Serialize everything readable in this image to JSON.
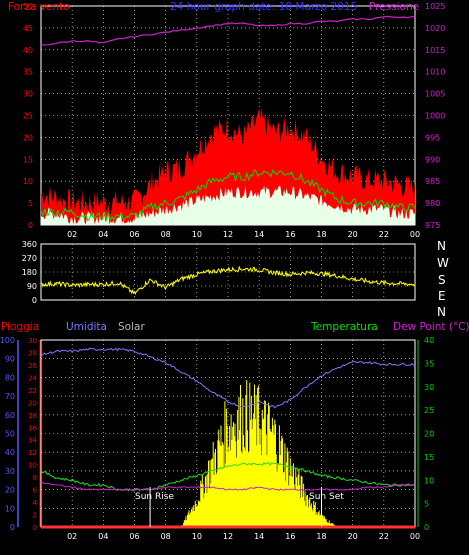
{
  "header": {
    "wind_label": "Forza vento",
    "title": "24 hour graph date: 10 Marzo 2015",
    "pressure_label": "Pressione"
  },
  "legend": {
    "rain": "Pioggia",
    "humidity": "Umidita",
    "solar": "Solar",
    "temperature": "Temperatura",
    "dewpoint": "Dew Point (°C)"
  },
  "compass": [
    "N",
    "W",
    "S",
    "E",
    "N"
  ],
  "colors": {
    "background": "#000000",
    "grid": "#ffffff",
    "wind_gust": "#ff0000",
    "wind_avg": "#00e000",
    "wind_speed": "#ffffff",
    "pressure": "#cc22cc",
    "direction": "#ffff00",
    "humidity": "#7b7bff",
    "temperature": "#22dd22",
    "dewpoint": "#cc22cc",
    "solar": "#ffff00",
    "rain": "#ff3333",
    "axis_red": "#ff0000",
    "axis_blue": "#5555ff",
    "axis_green": "#00cc00",
    "axis_magenta": "#cc22cc"
  },
  "chart_data": [
    {
      "type": "line",
      "name": "wind_and_pressure",
      "x_tick_labels": [
        "02",
        "04",
        "06",
        "08",
        "10",
        "12",
        "14",
        "16",
        "18",
        "20",
        "22",
        "00"
      ],
      "x": [
        0,
        1,
        2,
        3,
        4,
        5,
        6,
        7,
        8,
        9,
        10,
        11,
        12,
        13,
        14,
        15,
        16,
        17,
        18,
        19,
        20,
        21,
        22,
        23,
        24
      ],
      "left_axis": {
        "label": "Forza vento",
        "ylim": [
          0,
          50
        ],
        "ticks": [
          0,
          5,
          10,
          15,
          20,
          25,
          30,
          35,
          40,
          45,
          50
        ]
      },
      "right_axis": {
        "label": "Pressione",
        "ylim": [
          975,
          1025
        ],
        "ticks": [
          975,
          980,
          985,
          990,
          995,
          1000,
          1005,
          1010,
          1015,
          1020,
          1025
        ]
      },
      "series": [
        {
          "key": "gust",
          "axis": "left",
          "style": "filled",
          "values": [
            6,
            5,
            4,
            4,
            4,
            4,
            4,
            8,
            11,
            12,
            16,
            20,
            21,
            19,
            23,
            20,
            21,
            19,
            14,
            11,
            10,
            9,
            9,
            8,
            7
          ]
        },
        {
          "key": "average",
          "axis": "left",
          "style": "line",
          "values": [
            3,
            3,
            3,
            2,
            2,
            2,
            2,
            4,
            5,
            6,
            8,
            10,
            11,
            11,
            12,
            12,
            12,
            10,
            8,
            6,
            5,
            5,
            5,
            4,
            4
          ]
        },
        {
          "key": "speed",
          "axis": "left",
          "style": "filled",
          "values": [
            2,
            2,
            1,
            1,
            1,
            1,
            1,
            2,
            3,
            4,
            5,
            6,
            7,
            7,
            7,
            7,
            7,
            6,
            5,
            4,
            3,
            3,
            3,
            2,
            2
          ]
        },
        {
          "key": "pressure",
          "axis": "right",
          "style": "line",
          "values": [
            1016,
            1016.5,
            1017,
            1017,
            1016.5,
            1017.5,
            1018,
            1018.5,
            1019,
            1019.5,
            1020,
            1020.5,
            1021,
            1021,
            1020.5,
            1020.5,
            1021,
            1021,
            1021.5,
            1021.5,
            1022,
            1022,
            1022.5,
            1022.5,
            1022.5
          ]
        }
      ]
    },
    {
      "type": "line",
      "name": "wind_direction",
      "x_tick_labels": [
        "02",
        "04",
        "06",
        "08",
        "10",
        "12",
        "14",
        "16",
        "18",
        "20",
        "22",
        "00"
      ],
      "x": [
        0,
        1,
        2,
        3,
        4,
        5,
        6,
        7,
        8,
        9,
        10,
        11,
        12,
        13,
        14,
        15,
        16,
        17,
        18,
        19,
        20,
        21,
        22,
        23,
        24
      ],
      "y_axis": {
        "ylim": [
          0,
          360
        ],
        "ticks": [
          0,
          90,
          180,
          270,
          360
        ]
      },
      "series": [
        {
          "key": "direction",
          "values": [
            100,
            105,
            95,
            100,
            100,
            110,
            40,
            130,
            80,
            135,
            165,
            185,
            195,
            200,
            195,
            175,
            165,
            175,
            170,
            155,
            135,
            120,
            110,
            105,
            100
          ]
        }
      ]
    },
    {
      "type": "line",
      "name": "humidity_temperature_solar",
      "x_tick_labels": [
        "02",
        "04",
        "06",
        "08",
        "10",
        "12",
        "14",
        "16",
        "18",
        "20",
        "22",
        "00"
      ],
      "x": [
        0,
        1,
        2,
        3,
        4,
        5,
        6,
        7,
        8,
        9,
        10,
        11,
        12,
        13,
        14,
        15,
        16,
        17,
        18,
        19,
        20,
        21,
        22,
        23,
        24
      ],
      "axes": {
        "humidity": {
          "label": "Umidita",
          "ylim": [
            0,
            100
          ],
          "ticks": [
            0,
            10,
            20,
            30,
            40,
            50,
            60,
            70,
            80,
            90,
            100
          ]
        },
        "solar": {
          "label": "Solar",
          "ticks": [
            0,
            2,
            4,
            6,
            8,
            10,
            12,
            14,
            16,
            18,
            20,
            22,
            24,
            26,
            28,
            30
          ]
        },
        "temperature": {
          "label": "Temperatura",
          "ylim": [
            0,
            40
          ],
          "ticks": [
            0,
            5,
            10,
            15,
            20,
            25,
            30,
            35,
            40
          ]
        },
        "rain": {
          "label": "Pioggia"
        },
        "dewpoint": {
          "label": "Dew Point (°C)"
        }
      },
      "annotations": [
        "Sun Rise",
        "Sun Set"
      ],
      "series": [
        {
          "key": "humidity",
          "values": [
            92,
            94,
            94,
            95,
            95,
            95,
            94,
            91,
            88,
            83,
            78,
            72,
            67,
            64,
            67,
            64,
            68,
            75,
            81,
            85,
            88,
            88,
            87,
            87,
            87
          ]
        },
        {
          "key": "temperature",
          "values": [
            12,
            10.5,
            10,
            9,
            9,
            8,
            8,
            8,
            9,
            10,
            11,
            12,
            13,
            13.5,
            13.5,
            13.5,
            13,
            12,
            11,
            10.5,
            10,
            9.5,
            9,
            9,
            9
          ]
        },
        {
          "key": "dewpoint",
          "values": [
            9.5,
            9,
            8.5,
            8,
            8,
            8,
            8,
            8,
            8.5,
            8.5,
            8.5,
            8.5,
            8,
            8,
            8.5,
            8,
            8,
            8,
            8,
            8,
            8,
            8.5,
            8.5,
            9,
            9
          ]
        },
        {
          "key": "solar",
          "values": [
            0,
            0,
            0,
            0,
            0,
            0,
            0,
            0,
            0,
            0,
            5,
            12,
            19,
            21,
            20,
            17,
            11,
            6,
            2,
            0,
            0,
            0,
            0,
            0,
            0
          ]
        },
        {
          "key": "rain",
          "values": [
            0,
            0,
            0,
            0,
            0,
            0,
            0,
            0,
            0,
            0,
            0,
            0,
            0,
            0,
            0,
            0,
            0,
            0,
            0,
            0,
            0,
            0,
            0,
            0,
            0
          ]
        }
      ]
    }
  ]
}
